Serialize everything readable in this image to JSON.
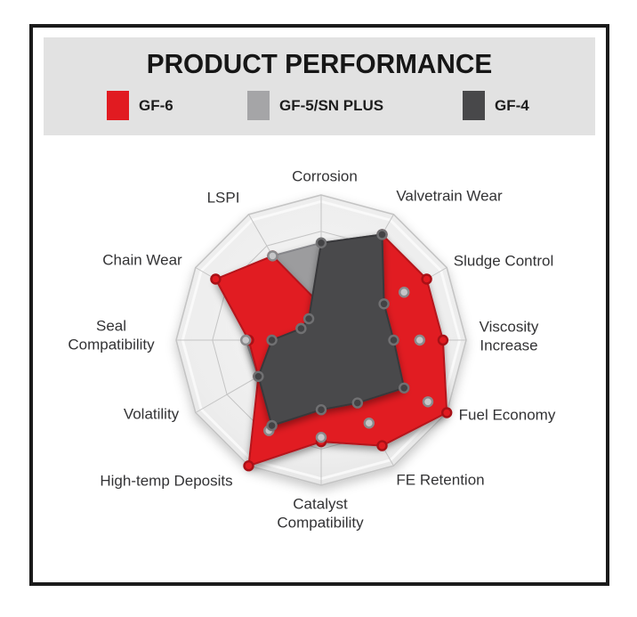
{
  "header": {
    "title": "PRODUCT PERFORMANCE",
    "legend": [
      {
        "label": "GF-6",
        "color": "#e11b21"
      },
      {
        "label": "GF-5/SN PLUS",
        "color": "#a5a5a7"
      },
      {
        "label": "GF-4",
        "color": "#48484a"
      }
    ]
  },
  "chart_data": {
    "type": "radar",
    "title": "PRODUCT PERFORMANCE",
    "scale_max": 5,
    "grid_rings": [
      0.25,
      0.5,
      0.75,
      1.0
    ],
    "legend_position": "top",
    "categories": [
      "Corrosion",
      "Valvetrain Wear",
      "Sludge Control",
      "Viscosity Increase",
      "Fuel Economy",
      "FE Retention",
      "Catalyst Compatibility",
      "High-temp Deposits",
      "Volatility",
      "Seal Compatibility",
      "Chain Wear",
      "LSPI"
    ],
    "series": [
      {
        "name": "GF-6",
        "color": "#e11b21",
        "stroke": "#b5121a",
        "values": [
          1.2,
          4.2,
          4.2,
          4.2,
          5.0,
          4.2,
          3.5,
          5.0,
          2.5,
          2.5,
          4.2,
          3.35
        ]
      },
      {
        "name": "GF-5/SN PLUS",
        "color": "#9c9c9e",
        "stroke": "#86868a",
        "values": [
          3.35,
          4.2,
          3.3,
          3.4,
          4.25,
          3.3,
          3.35,
          3.6,
          2.5,
          2.6,
          0.8,
          3.35
        ]
      },
      {
        "name": "GF-4",
        "color": "#4a4a4c",
        "stroke": "#39393b",
        "values": [
          3.35,
          4.2,
          2.5,
          2.5,
          3.3,
          2.5,
          2.4,
          3.4,
          2.5,
          1.7,
          0.8,
          0.85
        ]
      }
    ],
    "web_fill": "#ececec",
    "web_line": "#c4c4c4"
  }
}
